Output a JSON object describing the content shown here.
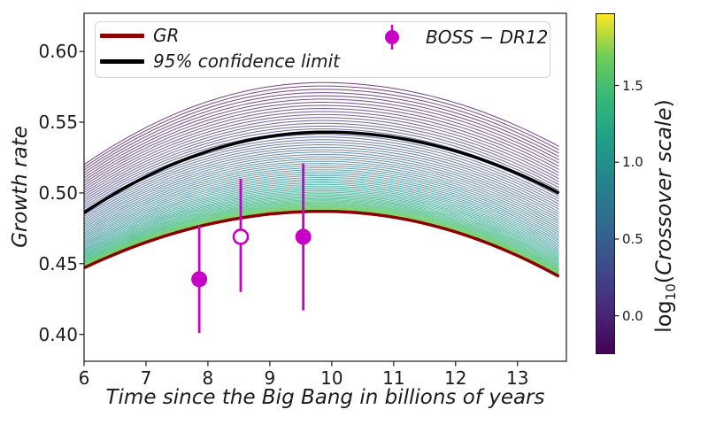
{
  "figure": {
    "background": "#ffffff"
  },
  "chart_data": {
    "type": "line",
    "title": "",
    "xlabel": "Time since the Big Bang in billions of years",
    "ylabel": "Growth rate",
    "xlim": [
      6,
      13.79
    ],
    "ylim": [
      0.381,
      0.627
    ],
    "grid": false,
    "x_ticks": [
      6,
      7,
      8,
      9,
      10,
      11,
      12,
      13
    ],
    "x_tick_labels": [
      "6",
      "7",
      "8",
      "9",
      "10",
      "11",
      "12",
      "13"
    ],
    "y_ticks": [
      0.4,
      0.45,
      0.5,
      0.55,
      0.6
    ],
    "y_tick_labels": [
      "0.40",
      "0.45",
      "0.50",
      "0.55",
      "0.60"
    ],
    "legend_position": "upper-left-and-upper-center",
    "series": [
      {
        "name": "GR",
        "type": "curve",
        "color": "#8B0000",
        "linewidth": 3.5,
        "shape": {
          "t_peak": 9.85,
          "peak_y": 0.487,
          "left_y": 0.447,
          "right_y": 0.438
        }
      },
      {
        "name": "95% confidence limit",
        "type": "curve",
        "color": "#000000",
        "linewidth": 3.5,
        "shape": {
          "t_peak": 9.9,
          "peak_y": 0.543,
          "left_y": 0.486,
          "right_y": 0.497
        }
      },
      {
        "name": "modified-gravity-curve-family",
        "type": "curve-family",
        "count": 70,
        "spacing_power": 1.85,
        "linewidth": 1,
        "opacity": 0.75,
        "colormap": "viridis-reversed-from-GR-up",
        "envelope_top": {
          "t_peak": 9.85,
          "peak_y": 0.578,
          "left_y": 0.52,
          "right_y": 0.53
        }
      },
      {
        "name": "BOSS − DR12",
        "type": "scatter-errorbar",
        "color": "#C800C8",
        "points": [
          {
            "t": 7.86,
            "growth_rate": 0.439,
            "err_low": 0.401,
            "err_high": 0.477,
            "filled": true
          },
          {
            "t": 8.53,
            "growth_rate": 0.469,
            "err_low": 0.43,
            "err_high": 0.51,
            "filled": false
          },
          {
            "t": 9.54,
            "growth_rate": 0.469,
            "err_low": 0.417,
            "err_high": 0.521,
            "filled": true
          }
        ]
      }
    ],
    "colorbar": {
      "vmin": -0.25,
      "vmax": 1.97,
      "ticks": [
        0.0,
        0.5,
        1.0,
        1.5
      ],
      "tick_labels": [
        "0.0",
        "0.5",
        "1.0",
        "1.5"
      ],
      "colormap": "viridis",
      "label_parts": {
        "log": "log",
        "sub": "10",
        "open": "(",
        "text": "Crossover scale",
        "close": ")"
      }
    },
    "viridis_anchors": [
      "#440154",
      "#482878",
      "#3e4a89",
      "#31688e",
      "#26828e",
      "#1f9e89",
      "#35b779",
      "#6dcd59",
      "#fde725"
    ]
  }
}
